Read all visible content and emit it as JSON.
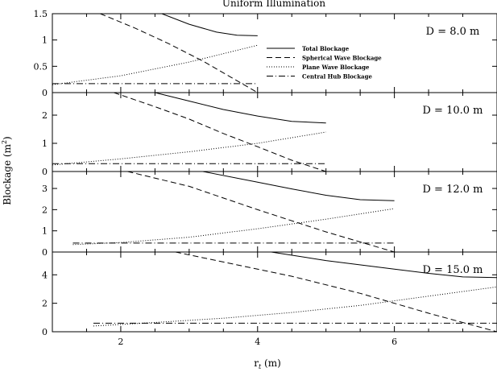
{
  "chart_data": {
    "type": "line",
    "title": "Uniform Illumination",
    "xlabel": "r_t (m)",
    "xlabel_main": "r",
    "xlabel_sub": "t",
    "xlabel_unit": "(m)",
    "ylabel": "Blockage (m^2)",
    "ylabel_main": "Blockage (m",
    "ylabel_sup": "2",
    "ylabel_end": ")",
    "xlim": [
      1,
      7.5
    ],
    "x_ticks": [
      2,
      4,
      6
    ],
    "x_tick_labels": [
      "2",
      "4",
      "6"
    ],
    "legend": {
      "placement": "inside top panel, right",
      "entries": [
        {
          "label": "Total Blockage",
          "style": "solid"
        },
        {
          "label": "Spherical Wave Blockage",
          "style": "dashed"
        },
        {
          "label": "Plane Wave Blockage",
          "style": "dotted"
        },
        {
          "label": "Central Hub Blockage",
          "style": "dashdot"
        }
      ]
    },
    "panels": [
      {
        "label": "D = 8.0 m",
        "ylim": [
          0,
          1.5
        ],
        "y_ticks": [
          0,
          0.5,
          1,
          1.5
        ],
        "y_tick_labels": [
          "0",
          "0.5",
          "1",
          "1.5"
        ],
        "series": [
          {
            "name": "Total Blockage",
            "x": [
              2.6,
              3.0,
              3.4,
              3.7,
              4.0
            ],
            "y": [
              1.5,
              1.3,
              1.15,
              1.09,
              1.08
            ]
          },
          {
            "name": "Spherical Wave Blockage",
            "x": [
              1.7,
              2.2,
              2.7,
              3.2,
              3.6,
              4.0
            ],
            "y": [
              1.5,
              1.23,
              0.93,
              0.6,
              0.3,
              0.0
            ]
          },
          {
            "name": "Plane Wave Blockage",
            "x": [
              1.0,
              2.0,
              3.0,
              4.0
            ],
            "y": [
              0.15,
              0.32,
              0.58,
              0.9
            ]
          },
          {
            "name": "Central Hub Blockage",
            "x": [
              1.0,
              4.0
            ],
            "y": [
              0.17,
              0.17
            ]
          }
        ]
      },
      {
        "label": "D = 10.0 m",
        "ylim": [
          0,
          2.8
        ],
        "y_ticks": [
          0,
          1,
          2
        ],
        "y_tick_labels": [
          "0",
          "1",
          "2"
        ],
        "series": [
          {
            "name": "Total Blockage",
            "x": [
              2.5,
              3.0,
              3.5,
              4.0,
              4.5,
              5.0
            ],
            "y": [
              2.8,
              2.5,
              2.2,
              1.97,
              1.78,
              1.72
            ]
          },
          {
            "name": "Spherical Wave Blockage",
            "x": [
              1.9,
              2.5,
              3.0,
              3.5,
              4.0,
              4.5,
              5.0
            ],
            "y": [
              2.8,
              2.3,
              1.86,
              1.35,
              0.88,
              0.4,
              0.0
            ]
          },
          {
            "name": "Plane Wave Blockage",
            "x": [
              1.0,
              2.0,
              3.0,
              4.0,
              5.0
            ],
            "y": [
              0.23,
              0.45,
              0.7,
              1.0,
              1.4
            ]
          },
          {
            "name": "Central Hub Blockage",
            "x": [
              1.0,
              5.0
            ],
            "y": [
              0.28,
              0.28
            ]
          }
        ]
      },
      {
        "label": "D = 12.0 m",
        "ylim": [
          0,
          3.8
        ],
        "y_ticks": [
          0,
          1,
          2,
          3
        ],
        "y_tick_labels": [
          "0",
          "1",
          "2",
          "3"
        ],
        "series": [
          {
            "name": "Total Blockage",
            "x": [
              3.2,
              4.0,
              4.5,
              5.0,
              5.5,
              6.0
            ],
            "y": [
              3.8,
              3.3,
              2.98,
              2.68,
              2.47,
              2.42
            ]
          },
          {
            "name": "Spherical Wave Blockage",
            "x": [
              2.1,
              3.0,
              4.0,
              5.0,
              6.0
            ],
            "y": [
              3.8,
              3.1,
              2.0,
              0.95,
              0.0
            ]
          },
          {
            "name": "Plane Wave Blockage",
            "x": [
              1.3,
              2.0,
              3.0,
              4.0,
              5.0,
              6.0
            ],
            "y": [
              0.35,
              0.45,
              0.7,
              1.1,
              1.55,
              2.05
            ]
          },
          {
            "name": "Central Hub Blockage",
            "x": [
              1.3,
              6.0
            ],
            "y": [
              0.42,
              0.42
            ]
          }
        ]
      },
      {
        "label": "D = 15.0 m",
        "ylim": [
          0,
          5.6
        ],
        "y_ticks": [
          0,
          2,
          4
        ],
        "y_tick_labels": [
          "0",
          "2",
          "4"
        ],
        "series": [
          {
            "name": "Total Blockage",
            "x": [
              4.2,
              5.0,
              6.0,
              6.5,
              7.0,
              7.5
            ],
            "y": [
              5.6,
              5.0,
              4.4,
              4.1,
              3.85,
              3.8
            ]
          },
          {
            "name": "Spherical Wave Blockage",
            "x": [
              2.8,
              3.5,
              4.5,
              5.5,
              6.5,
              7.5
            ],
            "y": [
              5.6,
              4.9,
              3.9,
              2.7,
              1.3,
              0.0
            ]
          },
          {
            "name": "Plane Wave Blockage",
            "x": [
              1.6,
              2.5,
              3.5,
              4.5,
              5.5,
              6.5,
              7.5
            ],
            "y": [
              0.4,
              0.65,
              0.95,
              1.35,
              1.85,
              2.5,
              3.15
            ]
          },
          {
            "name": "Central Hub Blockage",
            "x": [
              1.6,
              7.5
            ],
            "y": [
              0.6,
              0.6
            ]
          }
        ]
      }
    ]
  }
}
